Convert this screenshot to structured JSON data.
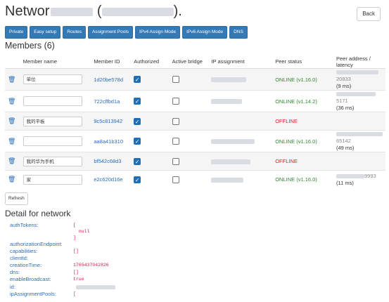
{
  "header": {
    "title_prefix": "Networ",
    "title_suffix": ").",
    "back_label": "Back"
  },
  "buttons": [
    "Private",
    "Easy setup",
    "Routes",
    "Assignment Pools",
    "IPv4 Assign Mode",
    "IPv6 Assign Mode",
    "DNS"
  ],
  "members": {
    "heading": "Members (6)",
    "columns": [
      "Member name",
      "Member ID",
      "Authorized",
      "Active bridge",
      "IP assignment",
      "Peer status",
      "Peer address / latency"
    ],
    "rows": [
      {
        "name": "单位",
        "id": "1d20be578d",
        "authorized": true,
        "bridge": false,
        "status": "ONLINE (v1.16.0)",
        "status_class": "online",
        "addr_tail": "20833",
        "latency": "(9 ms)"
      },
      {
        "name": "",
        "id": "722cffbd1a",
        "authorized": true,
        "bridge": false,
        "status": "ONLINE (v1.14.2)",
        "status_class": "online",
        "addr_tail": "5171",
        "latency": "(36 ms)"
      },
      {
        "name": "我的平板",
        "id": "9c5c813942",
        "authorized": true,
        "bridge": false,
        "status": "OFFLINE",
        "status_class": "offline",
        "addr_tail": "",
        "latency": ""
      },
      {
        "name": "",
        "id": "aa8a41b310",
        "authorized": true,
        "bridge": false,
        "status": "ONLINE (v1.16.0)",
        "status_class": "online",
        "addr_tail": "65142",
        "latency": "(49 ms)"
      },
      {
        "name": "我的华为手机",
        "id": "bf542c68d3",
        "authorized": true,
        "bridge": false,
        "status": "OFFLINE",
        "status_class": "offline",
        "addr_tail": "",
        "latency": ""
      },
      {
        "name": "家",
        "id": "e2c620d16e",
        "authorized": true,
        "bridge": false,
        "status": "ONLINE (v1.16.0)",
        "status_class": "online",
        "addr_tail": "9993",
        "latency": "(11 ms)"
      }
    ]
  },
  "refresh_label": "Refresh",
  "detail": {
    "heading": "Detail for network",
    "fields": [
      {
        "key": "authTokens:",
        "lines": [
          "[",
          "  null",
          "]"
        ]
      },
      {
        "key": "authorizationEndpoint:",
        "lines": []
      },
      {
        "key": "capabilities:",
        "lines": [
          "[]"
        ]
      },
      {
        "key": "clientId:",
        "lines": []
      },
      {
        "key": "creationTime:",
        "lines": [
          "1765437042826"
        ]
      },
      {
        "key": "dns:",
        "lines": [
          "[]"
        ]
      },
      {
        "key": "enableBroadcast:",
        "lines": [
          "true"
        ]
      },
      {
        "key": "id:",
        "lines": []
      },
      {
        "key": "ipAssignmentPools:",
        "lines": [
          "["
        ]
      }
    ]
  }
}
